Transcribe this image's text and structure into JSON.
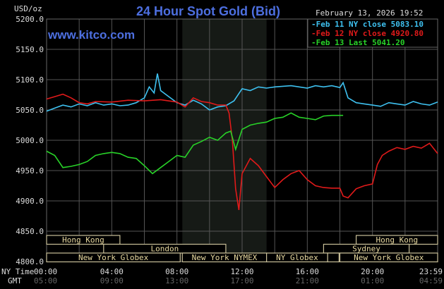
{
  "chart_data": {
    "type": "line",
    "title": "24 Hour Spot Gold (Bid)",
    "watermark": "www.kitco.com",
    "timestamp": "February 13, 2026 19:52",
    "ylabel": "USD/oz",
    "ylim": [
      4800,
      5200
    ],
    "yticks": [
      "5200.0",
      "5150.0",
      "5100.0",
      "5050.0",
      "5000.0",
      "4950.0",
      "4900.0",
      "4850.0",
      "4800.0"
    ],
    "x_row_label": "NY Time",
    "gmt_row_label": "GMT",
    "xticks": [
      "00:00",
      "04:00",
      "08:00",
      "12:00",
      "16:00",
      "20:00",
      "23:59"
    ],
    "xticks_gmt": [
      "05:00",
      "09:00",
      "13:00",
      "17:00",
      "21:00",
      "01:00",
      "04:59"
    ],
    "grid": true,
    "legend_position": "top-right",
    "highlight_region_hours": [
      8.33,
      13.5
    ],
    "series": [
      {
        "name": "Feb 11 NY close 5083.10",
        "color": "#3ec1f0",
        "x": [
          0,
          0.5,
          1,
          1.5,
          2,
          2.5,
          3,
          3.5,
          4,
          4.5,
          5,
          5.5,
          6,
          6.3,
          6.6,
          6.8,
          7,
          7.5,
          8,
          8.5,
          9,
          9.5,
          10,
          10.5,
          11,
          11.5,
          12,
          12.5,
          13,
          13.5,
          14,
          15,
          16,
          16.5,
          17,
          17.5,
          18,
          18.2,
          18.5,
          19,
          19.5,
          20,
          20.5,
          21,
          21.5,
          22,
          22.5,
          23,
          23.5,
          24
        ],
        "y": [
          5048,
          5053,
          5058,
          5055,
          5060,
          5057,
          5062,
          5058,
          5060,
          5057,
          5058,
          5062,
          5070,
          5088,
          5078,
          5110,
          5082,
          5072,
          5062,
          5058,
          5066,
          5060,
          5050,
          5055,
          5057,
          5065,
          5085,
          5082,
          5088,
          5086,
          5088,
          5090,
          5086,
          5090,
          5088,
          5090,
          5087,
          5095,
          5070,
          5062,
          5060,
          5058,
          5056,
          5062,
          5060,
          5058,
          5064,
          5060,
          5058,
          5063
        ]
      },
      {
        "name": "Feb 12 NY close 4920.80",
        "color": "#e01a1a",
        "x": [
          0,
          0.5,
          1,
          1.5,
          2,
          2.5,
          3,
          4,
          5,
          6,
          7,
          8,
          8.5,
          9,
          9.5,
          10,
          10.5,
          11,
          11.2,
          11.4,
          11.6,
          11.8,
          12,
          12.5,
          13,
          13.5,
          14,
          14.5,
          15,
          15.5,
          16,
          16.5,
          17,
          17.5,
          18,
          18.2,
          18.5,
          19,
          19.5,
          20,
          20.3,
          20.6,
          21,
          21.5,
          22,
          22.5,
          23,
          23.5,
          24
        ],
        "y": [
          5068,
          5072,
          5076,
          5070,
          5062,
          5060,
          5064,
          5063,
          5066,
          5065,
          5067,
          5063,
          5055,
          5070,
          5064,
          5062,
          5058,
          5058,
          5045,
          5000,
          4920,
          4885,
          4945,
          4970,
          4958,
          4940,
          4922,
          4935,
          4945,
          4950,
          4935,
          4925,
          4922,
          4921,
          4921,
          4908,
          4905,
          4920,
          4925,
          4928,
          4960,
          4975,
          4982,
          4988,
          4985,
          4990,
          4987,
          4995,
          4978
        ]
      },
      {
        "name": "Feb 13 Last 5041.20",
        "color": "#28d228",
        "x": [
          0,
          0.5,
          1,
          1.5,
          2,
          2.5,
          3,
          3.5,
          4,
          4.5,
          5,
          5.5,
          6,
          6.5,
          7,
          7.5,
          8,
          8.5,
          9,
          9.5,
          10,
          10.5,
          11,
          11.3,
          11.6,
          12,
          12.5,
          13,
          13.5,
          14,
          14.5,
          15,
          15.5,
          16,
          16.5,
          17,
          17.5,
          18,
          18.2
        ],
        "y": [
          4982,
          4975,
          4955,
          4957,
          4960,
          4965,
          4975,
          4978,
          4980,
          4978,
          4972,
          4970,
          4958,
          4945,
          4955,
          4965,
          4975,
          4972,
          4992,
          4998,
          5005,
          5000,
          5012,
          5015,
          4985,
          5018,
          5025,
          5028,
          5030,
          5036,
          5038,
          5045,
          5038,
          5036,
          5034,
          5040,
          5041,
          5041,
          5041
        ]
      }
    ],
    "sessions": [
      {
        "label": "Hong Kong",
        "row": 0,
        "start": 0,
        "end": 4.5
      },
      {
        "label": "Hong Kong",
        "row": 0,
        "start": 19,
        "end": 24
      },
      {
        "label": "London",
        "row": 1,
        "start": 3.5,
        "end": 11
      },
      {
        "label": "Sydney",
        "row": 1,
        "start": 17,
        "end": 22.25
      },
      {
        "label": "New York Globex",
        "row": 2,
        "start": 0,
        "end": 8.2
      },
      {
        "label": "New York NYMEX",
        "row": 2,
        "start": 8.33,
        "end": 13.5
      },
      {
        "label": "NY Globex",
        "row": 2,
        "start": 13.5,
        "end": 17.25
      },
      {
        "label": "",
        "row": 2,
        "start": 17.25,
        "end": 17.95
      },
      {
        "label": "New York Globex",
        "row": 2,
        "start": 18,
        "end": 24
      }
    ]
  }
}
